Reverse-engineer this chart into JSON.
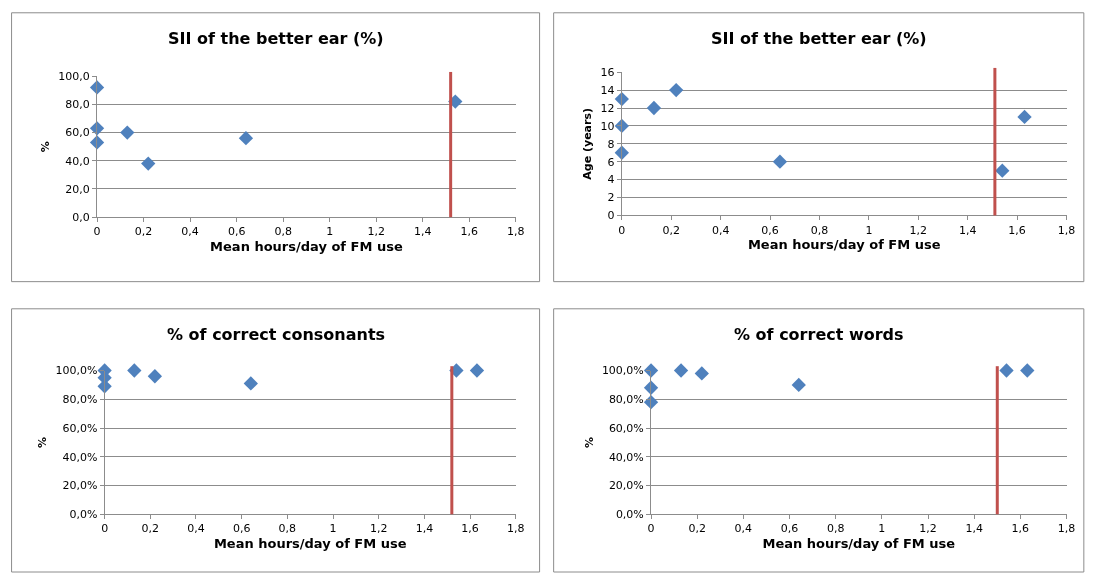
{
  "chart_data": [
    {
      "type": "scatter",
      "title": "SII of the better ear (%)",
      "xlabel": "Mean hours/day of FM use",
      "ylabel": "%",
      "x": [
        0,
        0,
        0,
        0.13,
        0.22,
        0.64,
        1.54
      ],
      "series": [
        {
          "color": "#4f81bd",
          "values": [
            92,
            63,
            53,
            60,
            38,
            56,
            82
          ]
        }
      ],
      "xlim": [
        0,
        1.8
      ],
      "xticks": [
        0,
        {
          "value": 0.2,
          "label": "0,2"
        },
        {
          "value": 0.4,
          "label": "0,4"
        },
        {
          "value": 0.6,
          "label": "0,6"
        },
        {
          "value": 0.8,
          "label": "0,8"
        },
        1,
        {
          "value": 1.2,
          "label": "1,2"
        },
        {
          "value": 1.4,
          "label": "1,4"
        },
        {
          "value": 1.6,
          "label": "1,6"
        },
        {
          "value": 1.8,
          "label": "1,8"
        }
      ],
      "ylim": [
        0,
        100
      ],
      "yticks": [
        {
          "value": 0,
          "label": "0,0"
        },
        {
          "value": 20,
          "label": "20,0"
        },
        {
          "value": 40,
          "label": "40,0"
        },
        {
          "value": 60,
          "label": "60,0"
        },
        {
          "value": 80,
          "label": "80,0"
        },
        {
          "value": 100,
          "label": "100,0"
        }
      ],
      "ref_lines": [
        {
          "axis": "x",
          "value": 1.52,
          "color": "#c0504d"
        }
      ],
      "grid": "y",
      "marker": "diamond"
    },
    {
      "type": "scatter",
      "title": "SII of the better ear (%)",
      "xlabel": "Mean hours/day of FM use",
      "ylabel": "Age (years)",
      "x": [
        0,
        0,
        0,
        0.13,
        0.22,
        0.64,
        1.54,
        1.63
      ],
      "series": [
        {
          "color": "#4f81bd",
          "values": [
            13,
            10,
            7,
            12,
            14,
            6,
            5,
            11
          ]
        }
      ],
      "xlim": [
        0,
        1.8
      ],
      "xticks": [
        0,
        {
          "value": 0.2,
          "label": "0,2"
        },
        {
          "value": 0.4,
          "label": "0,4"
        },
        {
          "value": 0.6,
          "label": "0,6"
        },
        {
          "value": 0.8,
          "label": "0,8"
        },
        1,
        {
          "value": 1.2,
          "label": "1,2"
        },
        {
          "value": 1.4,
          "label": "1,4"
        },
        {
          "value": 1.6,
          "label": "1,6"
        },
        {
          "value": 1.8,
          "label": "1,8"
        }
      ],
      "ylim": [
        0,
        16
      ],
      "yticks": [
        0,
        2,
        4,
        6,
        8,
        10,
        12,
        14,
        16
      ],
      "ref_lines": [
        {
          "axis": "x",
          "value": 1.51,
          "color": "#c0504d"
        }
      ],
      "grid": "y",
      "marker": "diamond"
    },
    {
      "type": "scatter",
      "title": "% of correct consonants",
      "xlabel": "Mean hours/day of FM use",
      "ylabel": "%",
      "x": [
        0,
        0,
        0,
        0.13,
        0.22,
        0.64,
        1.54,
        1.63
      ],
      "series": [
        {
          "color": "#4f81bd",
          "values": [
            100,
            95,
            89,
            100,
            96,
            91,
            100,
            100
          ]
        }
      ],
      "xlim": [
        0,
        1.8
      ],
      "xticks": [
        0,
        {
          "value": 0.2,
          "label": "0,2"
        },
        {
          "value": 0.4,
          "label": "0,4"
        },
        {
          "value": 0.6,
          "label": "0,6"
        },
        {
          "value": 0.8,
          "label": "0,8"
        },
        1,
        {
          "value": 1.2,
          "label": "1,2"
        },
        {
          "value": 1.4,
          "label": "1,4"
        },
        {
          "value": 1.6,
          "label": "1,6"
        },
        {
          "value": 1.8,
          "label": "1,8"
        }
      ],
      "ylim": [
        0,
        100
      ],
      "yticks": [
        {
          "value": 0,
          "label": "0,0%"
        },
        {
          "value": 20,
          "label": "20,0%"
        },
        {
          "value": 40,
          "label": "40,0%"
        },
        {
          "value": 60,
          "label": "60,0%"
        },
        {
          "value": 80,
          "label": "80,0%"
        },
        {
          "value": 100,
          "label": "100,0%"
        }
      ],
      "ref_lines": [
        {
          "axis": "x",
          "value": 1.52,
          "color": "#c0504d"
        }
      ],
      "grid": "y",
      "marker": "diamond"
    },
    {
      "type": "scatter",
      "title": "% of correct words",
      "xlabel": "Mean hours/day of FM use",
      "ylabel": "%",
      "x": [
        0,
        0,
        0,
        0.13,
        0.22,
        0.64,
        1.54,
        1.63
      ],
      "series": [
        {
          "color": "#4f81bd",
          "values": [
            100,
            88,
            78,
            100,
            98,
            90,
            100,
            100
          ]
        }
      ],
      "xlim": [
        0,
        1.8
      ],
      "xticks": [
        0,
        {
          "value": 0.2,
          "label": "0,2"
        },
        {
          "value": 0.4,
          "label": "0,4"
        },
        {
          "value": 0.6,
          "label": "0,6"
        },
        {
          "value": 0.8,
          "label": "0,8"
        },
        1,
        {
          "value": 1.2,
          "label": "1,2"
        },
        {
          "value": 1.4,
          "label": "1,4"
        },
        {
          "value": 1.6,
          "label": "1,6"
        },
        {
          "value": 1.8,
          "label": "1,8"
        }
      ],
      "ylim": [
        0,
        100
      ],
      "yticks": [
        {
          "value": 0,
          "label": "0,0%"
        },
        {
          "value": 20,
          "label": "20,0%"
        },
        {
          "value": 40,
          "label": "40,0%"
        },
        {
          "value": 60,
          "label": "60,0%"
        },
        {
          "value": 80,
          "label": "80,0%"
        },
        {
          "value": 100,
          "label": "100,0%"
        }
      ],
      "ref_lines": [
        {
          "axis": "x",
          "value": 1.5,
          "color": "#c0504d"
        }
      ],
      "grid": "y",
      "marker": "diamond"
    }
  ]
}
